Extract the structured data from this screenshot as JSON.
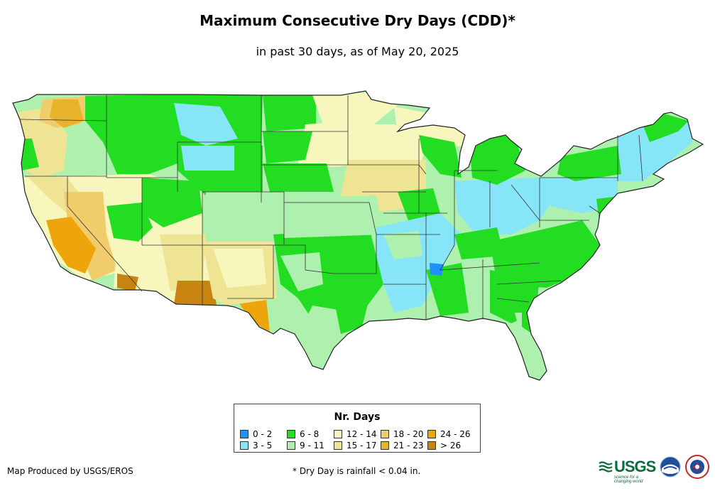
{
  "title": "Maximum Consecutive Dry Days (CDD)*",
  "subtitle": "in past 30 days, as of May 20, 2025",
  "legend": {
    "title": "Nr. Days",
    "items": [
      {
        "label": "0 - 2",
        "color": "#1e90ff"
      },
      {
        "label": "6 - 8",
        "color": "#22dd22"
      },
      {
        "label": "12 - 14",
        "color": "#f6f6bd"
      },
      {
        "label": "18 - 20",
        "color": "#f0cc6a"
      },
      {
        "label": "24 - 26",
        "color": "#eea50b"
      },
      {
        "label": "3 - 5",
        "color": "#87e5f8"
      },
      {
        "label": "9 - 11",
        "color": "#aef0ae"
      },
      {
        "label": "15 - 17",
        "color": "#efe493"
      },
      {
        "label": "21 - 23",
        "color": "#e8b22a"
      },
      {
        "label": "> 26",
        "color": "#c88411"
      }
    ]
  },
  "credit": "Map Produced by USGS/EROS",
  "footnote": "* Dry Day is rainfall < 0.04 in.",
  "logos": {
    "usgs_text": "USGS",
    "usgs_tagline": "science for a changing world"
  }
}
